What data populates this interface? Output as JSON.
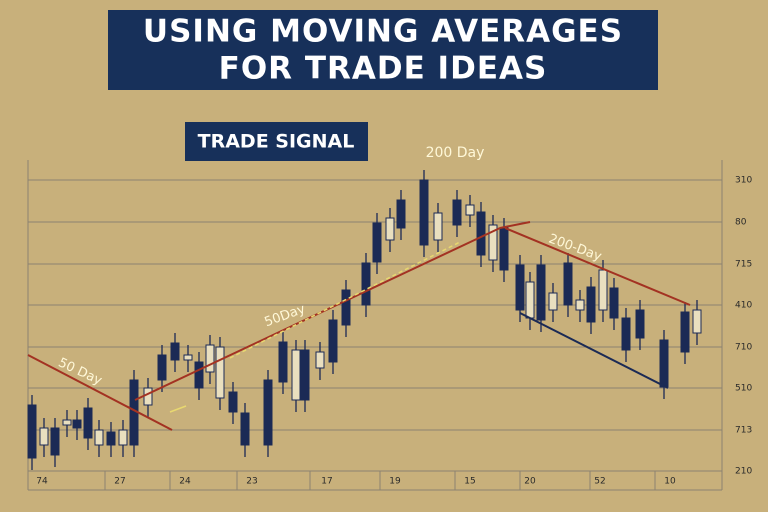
{
  "header": {
    "title_lines": [
      "USING MOVING AVERAGES",
      "FOR TRADE IDEAS"
    ]
  },
  "badge": "TRADE SIGNAL",
  "annotations": {
    "ma_50_left": "50 Day",
    "ma_50_mid": "50Day",
    "ma_200_top": "200 Day",
    "ma_200_right": "200-Day"
  },
  "y_axis_labels": [
    "310",
    "80",
    "715",
    "410",
    "710",
    "510",
    "713",
    "210"
  ],
  "x_axis_labels": [
    "74",
    "27",
    "24",
    "23",
    "17",
    "19",
    "15",
    "20",
    "52",
    "10"
  ]
}
